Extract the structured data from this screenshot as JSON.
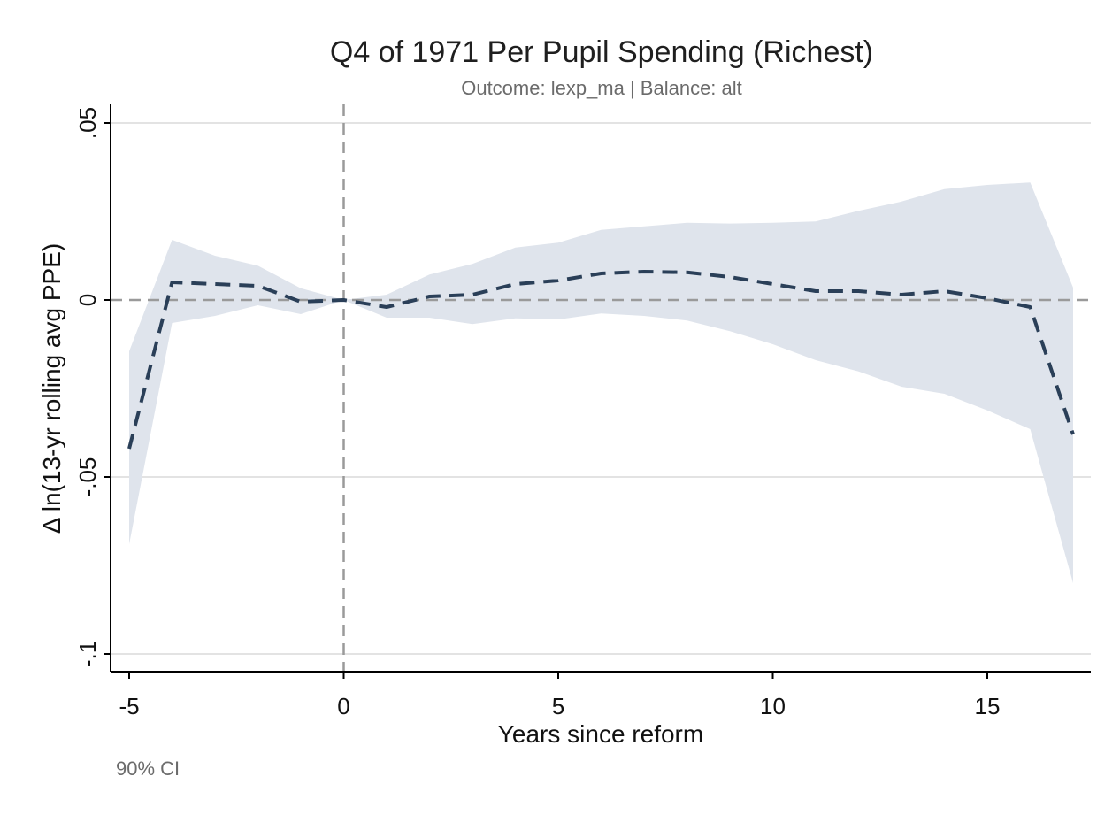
{
  "chart_data": {
    "type": "line",
    "title": "Q4 of 1971 Per Pupil Spending (Richest)",
    "subtitle": "Outcome: lexp_ma | Balance: alt",
    "xlabel": "Years since reform",
    "ylabel": "Δ ln(13-yr rolling avg PPE)",
    "note": "90% CI",
    "xlim": [
      -5,
      17
    ],
    "ylim": [
      -0.1,
      0.05
    ],
    "x_ticks": [
      -5,
      0,
      5,
      10,
      15
    ],
    "x_tick_labels": [
      "-5",
      "0",
      "5",
      "10",
      "15"
    ],
    "y_ticks": [
      0.05,
      0,
      -0.05,
      -0.1
    ],
    "y_tick_labels": [
      ".05",
      "0",
      "-.05",
      "-.1"
    ],
    "grid": "horizontal",
    "reference_lines": {
      "x": 0,
      "y": 0
    },
    "colors": {
      "line": "#2a3f58",
      "ci_band": "#dfe4ec",
      "grid": "#e3e3e3",
      "reference": "#9a9a9a"
    },
    "x": [
      -5,
      -4,
      -3,
      -2,
      -1,
      0,
      1,
      2,
      3,
      4,
      5,
      6,
      7,
      8,
      9,
      10,
      11,
      12,
      13,
      14,
      15,
      16,
      17
    ],
    "series": [
      {
        "values": [
          -0.042,
          0.005,
          0.0045,
          0.004,
          -0.0005,
          0.0,
          -0.002,
          0.001,
          0.0015,
          0.0045,
          0.0055,
          0.0075,
          0.008,
          0.0078,
          0.0065,
          0.0045,
          0.0025,
          0.0025,
          0.0015,
          0.0025,
          0.0005,
          -0.002,
          -0.038
        ],
        "ci_lower": [
          -0.069,
          -0.0065,
          -0.0045,
          -0.0015,
          -0.004,
          0.0,
          -0.005,
          -0.005,
          -0.0068,
          -0.0052,
          -0.0055,
          -0.0038,
          -0.0045,
          -0.0058,
          -0.0088,
          -0.0125,
          -0.017,
          -0.0202,
          -0.0245,
          -0.0265,
          -0.0312,
          -0.0365,
          -0.08
        ],
        "ci_upper": [
          -0.0145,
          0.017,
          0.0125,
          0.0097,
          0.0033,
          0.0,
          0.0015,
          0.0072,
          0.0102,
          0.0148,
          0.0162,
          0.0198,
          0.0208,
          0.0218,
          0.0216,
          0.0218,
          0.0222,
          0.0252,
          0.0278,
          0.0313,
          0.0325,
          0.0332,
          0.0035
        ]
      }
    ]
  }
}
